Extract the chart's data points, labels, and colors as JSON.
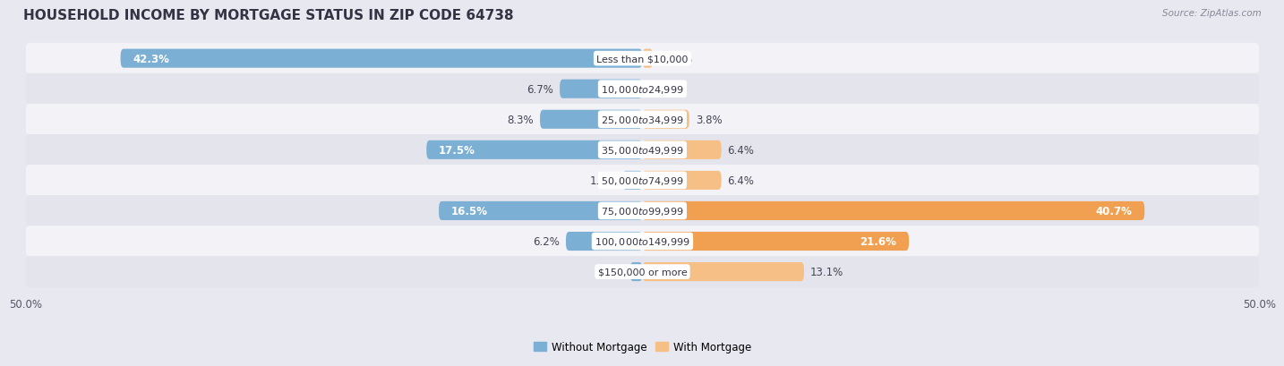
{
  "title": "HOUSEHOLD INCOME BY MORTGAGE STATUS IN ZIP CODE 64738",
  "source": "Source: ZipAtlas.com",
  "categories": [
    "Less than $10,000",
    "$10,000 to $24,999",
    "$25,000 to $34,999",
    "$35,000 to $49,999",
    "$50,000 to $74,999",
    "$75,000 to $99,999",
    "$100,000 to $149,999",
    "$150,000 or more"
  ],
  "without_mortgage": [
    42.3,
    6.7,
    8.3,
    17.5,
    1.6,
    16.5,
    6.2,
    1.0
  ],
  "with_mortgage": [
    0.85,
    0.0,
    3.8,
    6.4,
    6.4,
    40.7,
    21.6,
    13.1
  ],
  "without_mortgage_color": "#7bafd4",
  "with_mortgage_color": "#f5bf85",
  "with_mortgage_color_large": "#f0a050",
  "background_color": "#e8e8f0",
  "row_bg_light": "#f2f2f7",
  "row_bg_dark": "#e4e4ec",
  "axis_limit": 50.0,
  "bar_height": 0.62,
  "title_fontsize": 11,
  "label_fontsize": 8.5,
  "cat_fontsize": 8.0,
  "tick_fontsize": 8.5,
  "legend_fontsize": 8.5,
  "wom_large_threshold": 10.0,
  "wm_large_threshold": 15.0
}
